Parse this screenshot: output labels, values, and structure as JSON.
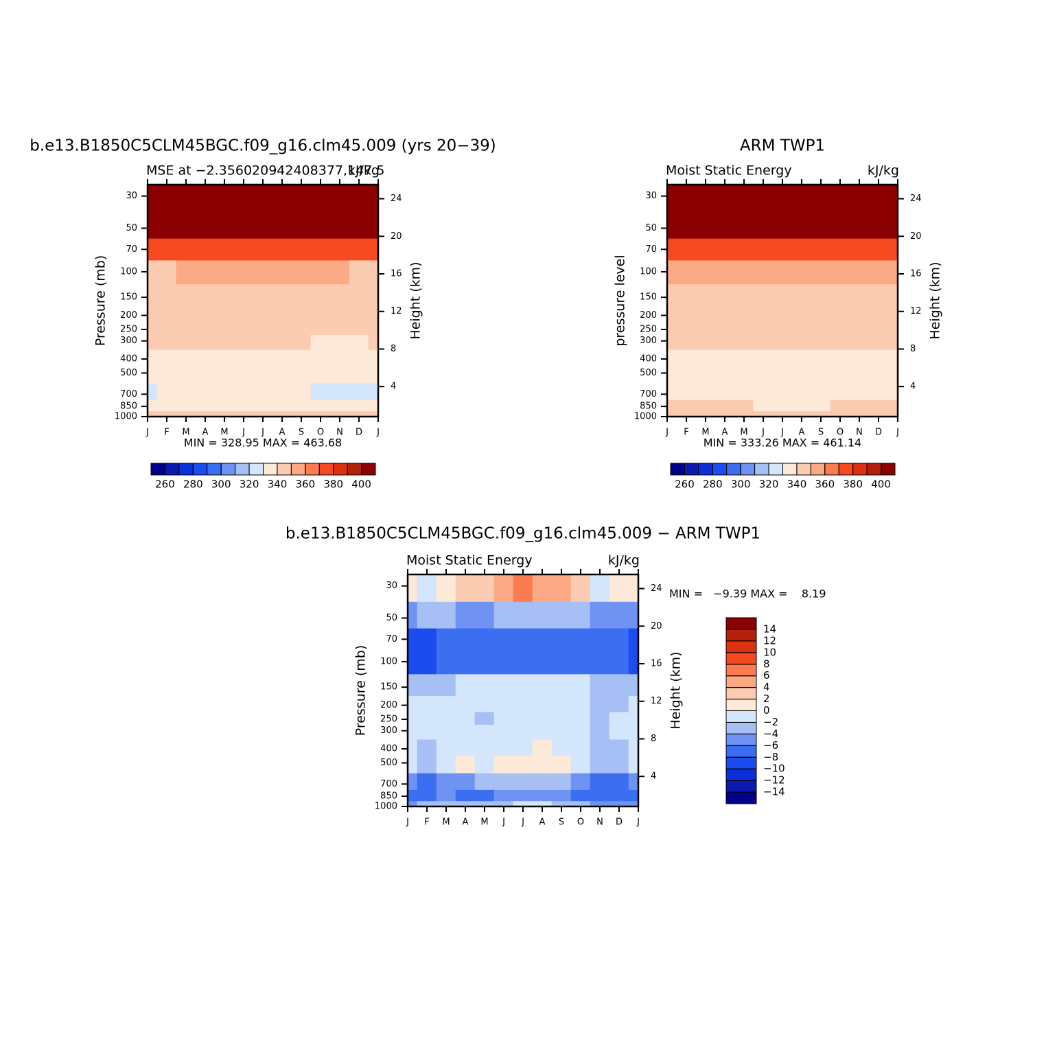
{
  "chart_data": [
    {
      "type": "contour",
      "title": "b.e13.B1850C5CLM45BGC.f09_g16.clm45.009 (yrs 20−39)",
      "subtitle_left": "MSE at −2.356020942408377,147.5",
      "subtitle_right": "kJ/kg",
      "ylabel": "Pressure (mb)",
      "y2label": "Height (km)",
      "x": [
        "J",
        "F",
        "M",
        "A",
        "M",
        "J",
        "J",
        "A",
        "S",
        "O",
        "N",
        "D",
        "J"
      ],
      "y": [
        30,
        50,
        70,
        100,
        150,
        200,
        250,
        300,
        400,
        500,
        700,
        850,
        1000
      ],
      "ylim": [
        25,
        1000
      ],
      "log_y": true,
      "yticks": [
        30,
        50,
        70,
        100,
        150,
        200,
        250,
        300,
        400,
        500,
        700,
        850,
        1000
      ],
      "y2lim": [
        0.8,
        25.5
      ],
      "y2ticks": [
        4,
        8,
        12,
        16,
        20,
        24
      ],
      "z": [
        [
          440,
          440,
          440,
          440,
          440,
          440,
          440,
          440,
          440,
          440,
          440,
          440,
          440
        ],
        [
          405,
          405,
          404,
          403,
          402,
          401,
          401,
          401,
          402,
          403,
          404,
          405,
          405
        ],
        [
          378,
          377,
          375,
          374,
          372,
          371,
          371,
          371,
          372,
          373,
          375,
          377,
          378
        ],
        [
          349.5,
          349.5,
          350,
          351,
          352,
          352,
          352,
          352,
          351,
          350,
          350,
          349.5,
          349.5
        ],
        [
          346,
          346,
          346,
          346,
          346,
          346,
          346,
          346,
          346,
          346,
          346,
          346,
          346
        ],
        [
          345,
          345,
          345,
          345,
          345,
          345,
          345,
          345,
          345,
          345,
          345,
          345,
          345
        ],
        [
          343,
          343,
          343,
          343,
          343,
          343,
          343,
          343,
          343,
          343,
          343,
          343,
          343
        ],
        [
          340.5,
          340.5,
          340.5,
          340.5,
          340.5,
          340.5,
          340.5,
          340.5,
          340,
          339.5,
          339,
          339.5,
          340.5
        ],
        [
          336,
          336,
          336,
          336,
          336,
          336,
          336,
          336,
          336,
          336,
          336,
          336,
          336
        ],
        [
          334,
          334,
          334,
          334,
          334,
          334,
          334,
          334,
          334,
          334,
          334,
          334,
          334
        ],
        [
          329.5,
          331,
          331,
          331,
          331,
          331,
          331,
          331,
          331,
          329.5,
          329.5,
          329.5,
          329.5
        ],
        [
          336,
          336,
          336,
          336,
          336,
          336,
          336,
          336,
          336,
          336,
          336,
          336,
          336
        ],
        [
          342,
          342,
          342,
          342,
          342,
          342,
          342,
          342,
          342,
          342,
          342,
          342,
          342
        ]
      ],
      "stats": "MIN = 328.95 MAX = 463.68",
      "colorbar": {
        "orientation": "horizontal",
        "levels": [
          260,
          270,
          280,
          290,
          300,
          310,
          320,
          330,
          340,
          350,
          360,
          370,
          380,
          390,
          400
        ],
        "ticks": [
          260,
          280,
          300,
          320,
          340,
          360,
          380,
          400
        ],
        "colors": [
          "#00008b",
          "#0a1ab0",
          "#0d2fd8",
          "#1a4cf0",
          "#3c6ef2",
          "#6f93f2",
          "#a6bff5",
          "#d4e6fb",
          "#fde9d8",
          "#fcccb2",
          "#fca985",
          "#fb7c50",
          "#f5491f",
          "#dc3212",
          "#b5200a",
          "#8b0000"
        ]
      }
    },
    {
      "type": "contour",
      "title": "ARM TWP1",
      "subtitle_left": "Moist Static Energy",
      "subtitle_right": "kJ/kg",
      "ylabel": "pressure level",
      "y2label": "Height (km)",
      "x": [
        "J",
        "F",
        "M",
        "A",
        "M",
        "J",
        "J",
        "A",
        "S",
        "O",
        "N",
        "D",
        "J"
      ],
      "y": [
        30,
        50,
        70,
        100,
        150,
        200,
        250,
        300,
        400,
        500,
        700,
        850,
        1000
      ],
      "ylim": [
        25,
        1000
      ],
      "log_y": true,
      "yticks": [
        30,
        50,
        70,
        100,
        150,
        200,
        250,
        300,
        400,
        500,
        700,
        850,
        1000
      ],
      "y2lim": [
        0.8,
        25.5
      ],
      "y2ticks": [
        4,
        8,
        12,
        16,
        20,
        24
      ],
      "z": [
        [
          440,
          440,
          440,
          440,
          440,
          440,
          440,
          440,
          440,
          440,
          440,
          440,
          440
        ],
        [
          405,
          405,
          405,
          404,
          404,
          403,
          403,
          403,
          404,
          404,
          405,
          405,
          405
        ],
        [
          376,
          376,
          375,
          374,
          373,
          372,
          371,
          371,
          372,
          373,
          374,
          375,
          376
        ],
        [
          355,
          355,
          355,
          356,
          357,
          357,
          358,
          358,
          357,
          356,
          356,
          355,
          355
        ],
        [
          345,
          345,
          345,
          345,
          345,
          345,
          345,
          345,
          345,
          345,
          345,
          345,
          345
        ],
        [
          343,
          343,
          343,
          343,
          343,
          343,
          343,
          343,
          343,
          343,
          343,
          343,
          343
        ],
        [
          342,
          342,
          342,
          342,
          342,
          342,
          342,
          342,
          342,
          342,
          342,
          342,
          342
        ],
        [
          341,
          341,
          341,
          341,
          341,
          341,
          341,
          341,
          341,
          341,
          341,
          341,
          341
        ],
        [
          338,
          338,
          338,
          338,
          338,
          338,
          337,
          337,
          337,
          337,
          338,
          338,
          338
        ],
        [
          335,
          335,
          335,
          335,
          335,
          335,
          335,
          335,
          335,
          335,
          335,
          335,
          335
        ],
        [
          334,
          334,
          334,
          334,
          334,
          334,
          334,
          334,
          334,
          334,
          334,
          334,
          334
        ],
        [
          340.5,
          340.5,
          340.5,
          340.5,
          340,
          339.5,
          339.5,
          339.5,
          339.5,
          340,
          340.5,
          340.5,
          340.5
        ],
        [
          344,
          344,
          344,
          344,
          344,
          344,
          344,
          344,
          344,
          344,
          344,
          344,
          344
        ]
      ],
      "stats": "MIN = 333.26 MAX = 461.14",
      "colorbar": {
        "orientation": "horizontal",
        "levels": [
          260,
          270,
          280,
          290,
          300,
          310,
          320,
          330,
          340,
          350,
          360,
          370,
          380,
          390,
          400
        ],
        "ticks": [
          260,
          280,
          300,
          320,
          340,
          360,
          380,
          400
        ],
        "colors": [
          "#00008b",
          "#0a1ab0",
          "#0d2fd8",
          "#1a4cf0",
          "#3c6ef2",
          "#6f93f2",
          "#a6bff5",
          "#d4e6fb",
          "#fde9d8",
          "#fcccb2",
          "#fca985",
          "#fb7c50",
          "#f5491f",
          "#dc3212",
          "#b5200a",
          "#8b0000"
        ]
      }
    },
    {
      "type": "contour",
      "title": "b.e13.B1850C5CLM45BGC.f09_g16.clm45.009 − ARM TWP1",
      "subtitle_left": "Moist Static Energy",
      "subtitle_right": "kJ/kg",
      "ylabel": "Pressure (mb)",
      "y2label": "Height (km)",
      "x": [
        "J",
        "F",
        "M",
        "A",
        "M",
        "J",
        "J",
        "A",
        "S",
        "O",
        "N",
        "D",
        "J"
      ],
      "y": [
        30,
        50,
        70,
        100,
        150,
        200,
        250,
        300,
        400,
        500,
        700,
        850,
        1000
      ],
      "ylim": [
        25,
        1000
      ],
      "log_y": true,
      "yticks": [
        30,
        50,
        70,
        100,
        150,
        200,
        250,
        300,
        400,
        500,
        700,
        850,
        1000
      ],
      "y2lim": [
        0.8,
        25.5
      ],
      "y2ticks": [
        4,
        8,
        12,
        16,
        20,
        24
      ],
      "z": [
        [
          0.5,
          -1,
          0.5,
          3,
          3,
          4,
          6.5,
          5,
          4,
          3,
          -1,
          0.5,
          0.5
        ],
        [
          -5,
          -4,
          -4,
          -5,
          -4.5,
          -4,
          -3,
          -3,
          -3,
          -3.5,
          -4.5,
          -5,
          -5
        ],
        [
          -9,
          -9,
          -7,
          -7,
          -7,
          -7,
          -7,
          -7,
          -7,
          -7,
          -7,
          -8,
          -9
        ],
        [
          -9,
          -9,
          -7,
          -7.5,
          -7.5,
          -7,
          -7,
          -7,
          -7,
          -7,
          -7,
          -8,
          -9
        ],
        [
          -3,
          -3,
          -2.5,
          -1.5,
          -1.5,
          -1.5,
          -1.5,
          -1.5,
          -1.5,
          -2,
          -2.5,
          -3,
          -3
        ],
        [
          -1,
          -1,
          -1,
          -1,
          -1.5,
          -1,
          -1,
          -1,
          -1,
          -1,
          -2.5,
          -2.5,
          -1
        ],
        [
          -1,
          -1,
          -1,
          -1,
          -2.5,
          -1,
          -1,
          -1,
          -1,
          -1,
          -2.5,
          -2,
          -1
        ],
        [
          -1,
          -1,
          -1,
          -1,
          -1,
          -1,
          -1,
          -1,
          -1,
          -1,
          -2.5,
          -1.5,
          -1
        ],
        [
          -1,
          -2.5,
          -1,
          -1,
          -1,
          -1,
          -0.5,
          0.5,
          -1,
          -1,
          -2.5,
          -2.5,
          -1
        ],
        [
          -1,
          -2.5,
          -1,
          0.5,
          -0.5,
          0.5,
          0.5,
          0.5,
          0.5,
          -1,
          -2.5,
          -2.5,
          -1
        ],
        [
          -5,
          -6.5,
          -5,
          -4.5,
          -3,
          -2.5,
          -2.5,
          -2.5,
          -3.5,
          -4.5,
          -6.5,
          -6.5,
          -5
        ],
        [
          -7,
          -6.5,
          -4.5,
          -6.5,
          -6.5,
          -4.5,
          -4.5,
          -4.5,
          -6,
          -6.5,
          -7,
          -7.5,
          -7
        ],
        [
          -4.5,
          -4,
          -4,
          -4,
          -3,
          -2.5,
          -2,
          -2,
          -3.5,
          -4,
          -4.5,
          -4.5,
          -4.5
        ]
      ],
      "stats": "MIN =   −9.39 MAX =    8.19",
      "colorbar": {
        "orientation": "vertical",
        "levels": [
          -14,
          -12,
          -10,
          -8,
          -6,
          -4,
          -2,
          0,
          2,
          4,
          6,
          8,
          10,
          12,
          14
        ],
        "ticks": [
          {
            "value": -14,
            "label": "−14"
          },
          {
            "value": -12,
            "label": "−12"
          },
          {
            "value": -10,
            "label": "−10"
          },
          {
            "value": -8,
            "label": "−8"
          },
          {
            "value": -6,
            "label": "−6"
          },
          {
            "value": -4,
            "label": "−4"
          },
          {
            "value": -2,
            "label": "−2"
          },
          0,
          2,
          4,
          6,
          8,
          10,
          12,
          14
        ],
        "colors": [
          "#00008b",
          "#0a1ab0",
          "#0d2fd8",
          "#1a4cf0",
          "#3c6ef2",
          "#6f93f2",
          "#a6bff5",
          "#d4e6fb",
          "#fde9d8",
          "#fcccb2",
          "#fca985",
          "#fb7c50",
          "#f5491f",
          "#dc3212",
          "#b5200a",
          "#8b0000"
        ]
      }
    }
  ]
}
